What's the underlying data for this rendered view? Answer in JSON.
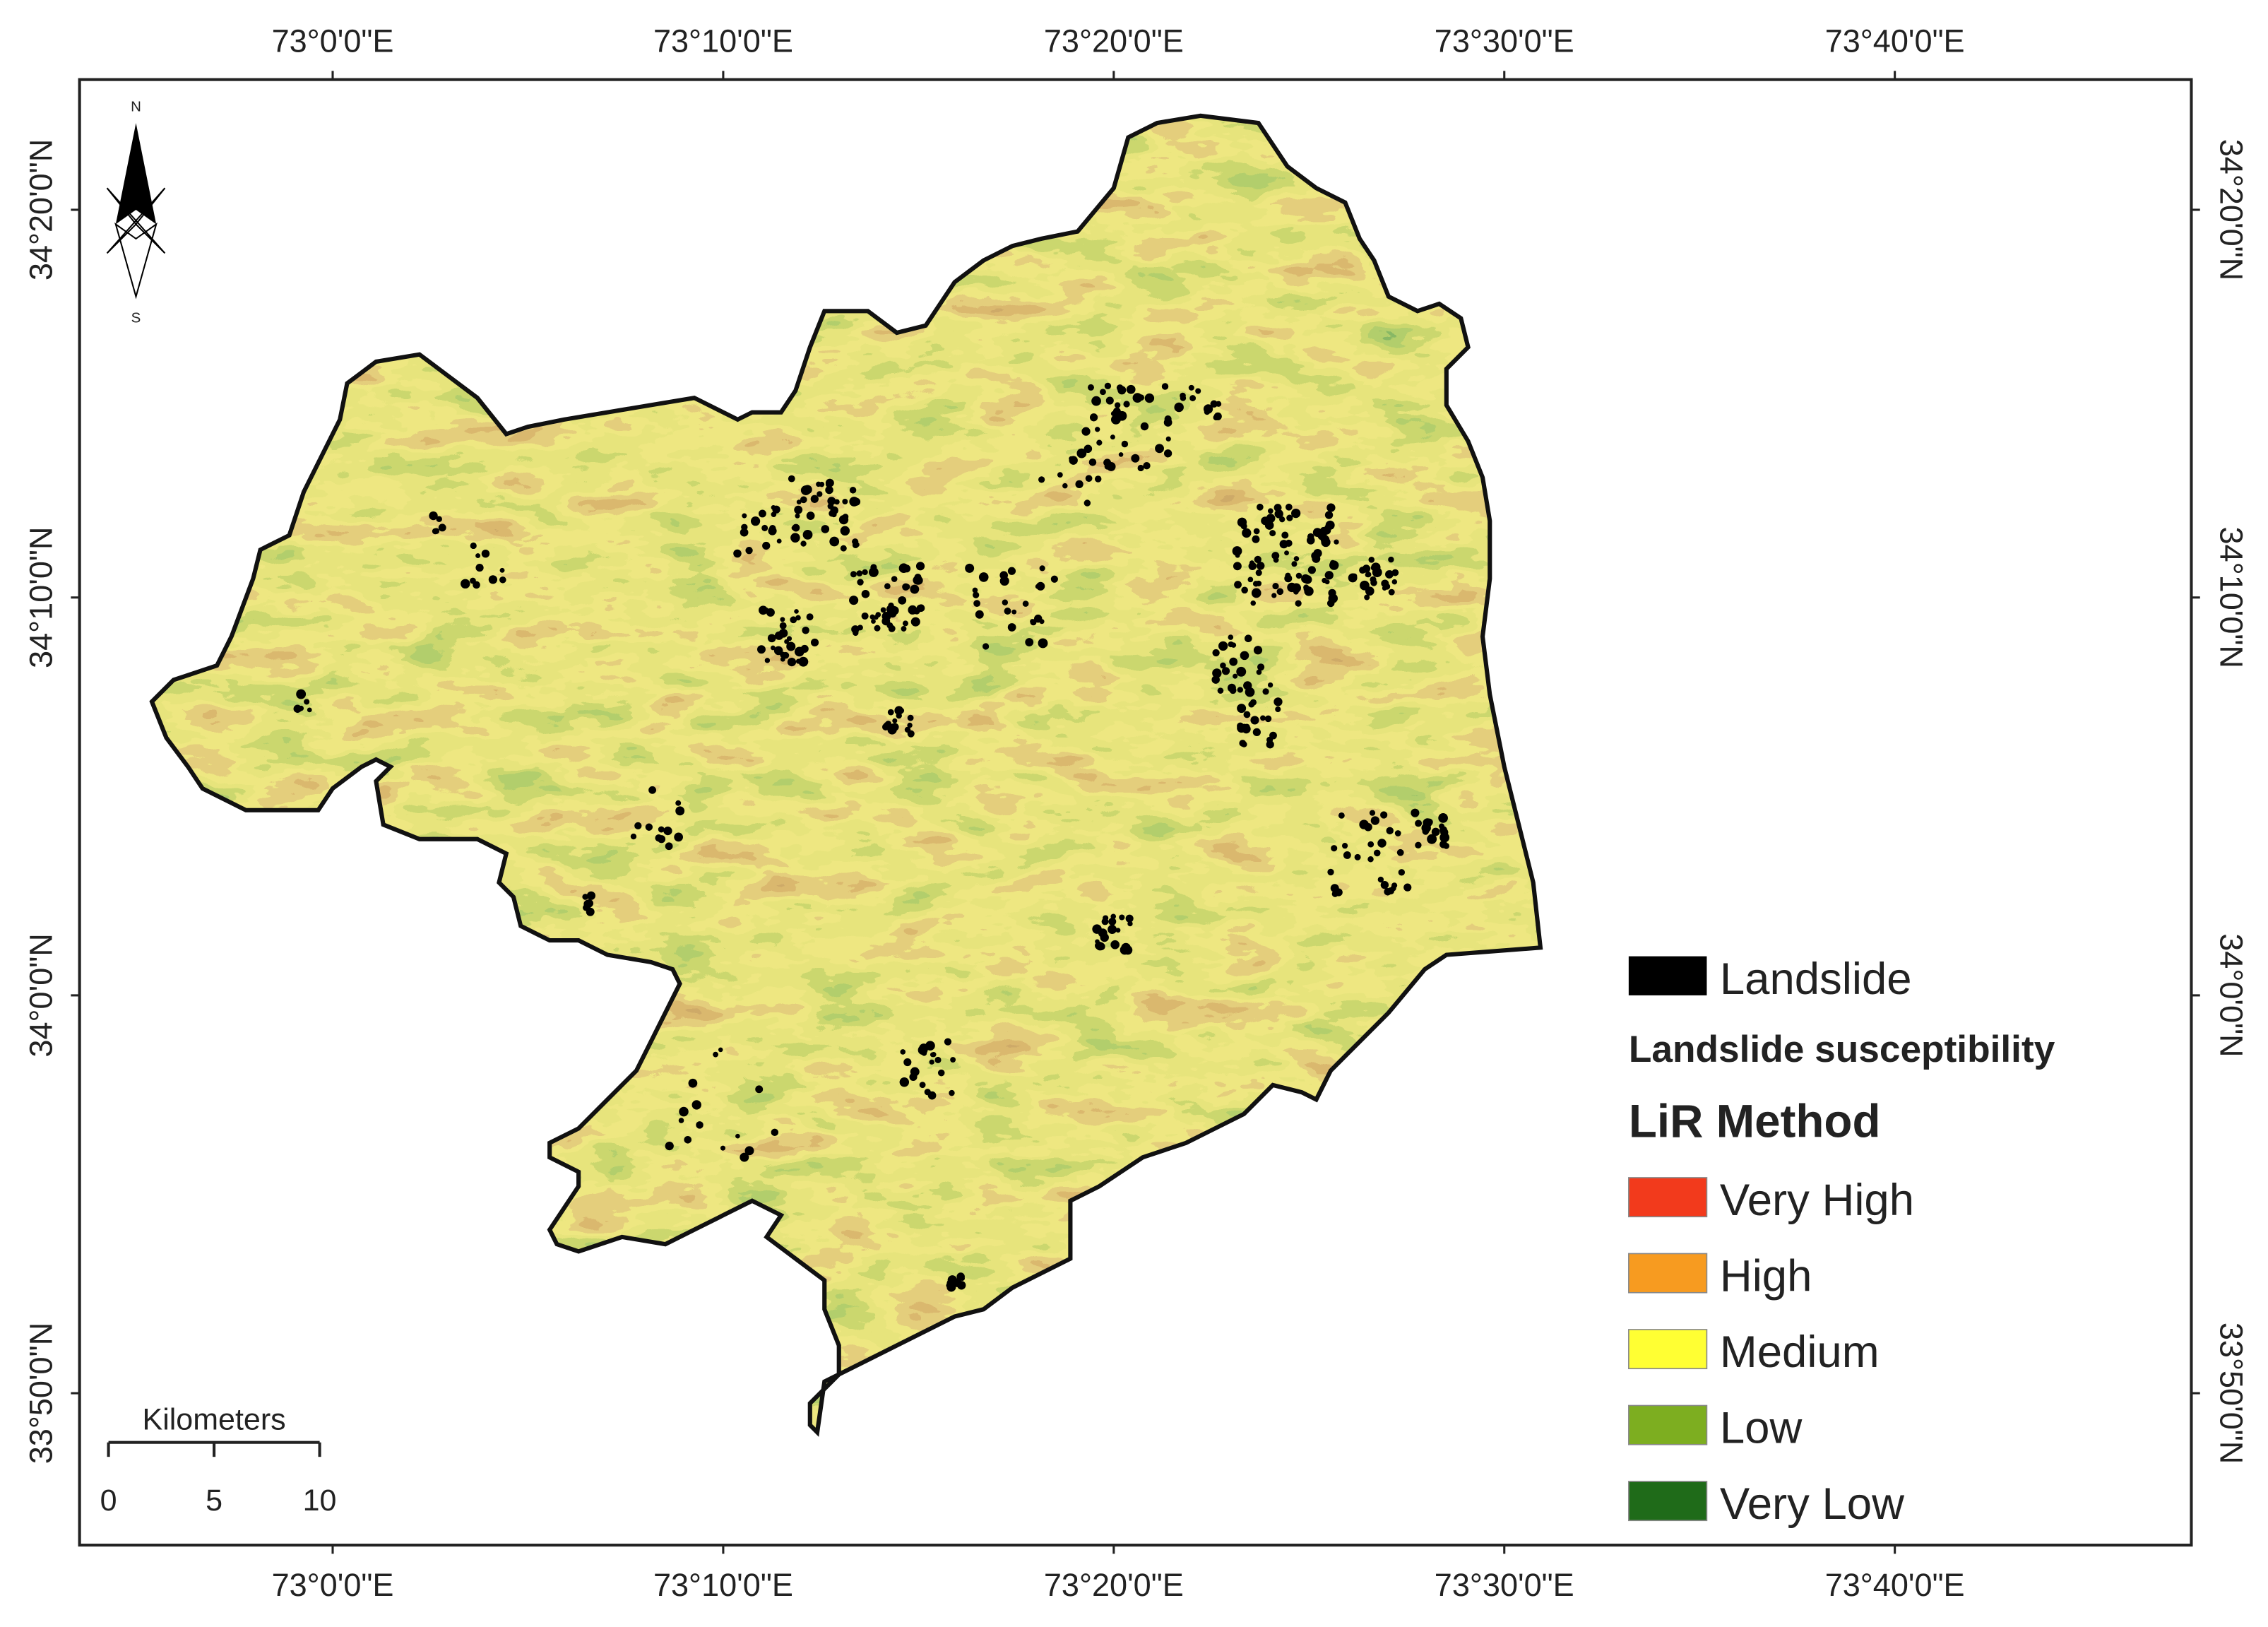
{
  "map": {
    "longitude_labels": [
      "73°0'0\"E",
      "73°10'0\"E",
      "73°20'0\"E",
      "73°30'0\"E",
      "73°40'0\"E"
    ],
    "latitude_labels": [
      "34°20'0\"N",
      "34°10'0\"N",
      "34°0'0\"N",
      "33°50'0\"N"
    ],
    "north_arrow": {
      "north": "N",
      "south": "S"
    },
    "scale_bar": {
      "title": "Kilometers",
      "ticks": [
        "0",
        "5",
        "10"
      ]
    },
    "legend": {
      "landslide": {
        "label": "Landslide",
        "color": "#000000"
      },
      "title": "Landslide susceptibility",
      "subtitle": "LiR Method",
      "classes": [
        {
          "label": "Very High",
          "color": "#f23a1c"
        },
        {
          "label": "High",
          "color": "#f79b20"
        },
        {
          "label": "Medium",
          "color": "#ffff33"
        },
        {
          "label": "Low",
          "color": "#7dae20"
        },
        {
          "label": "Very Low",
          "color": "#1f6b19"
        }
      ]
    }
  }
}
